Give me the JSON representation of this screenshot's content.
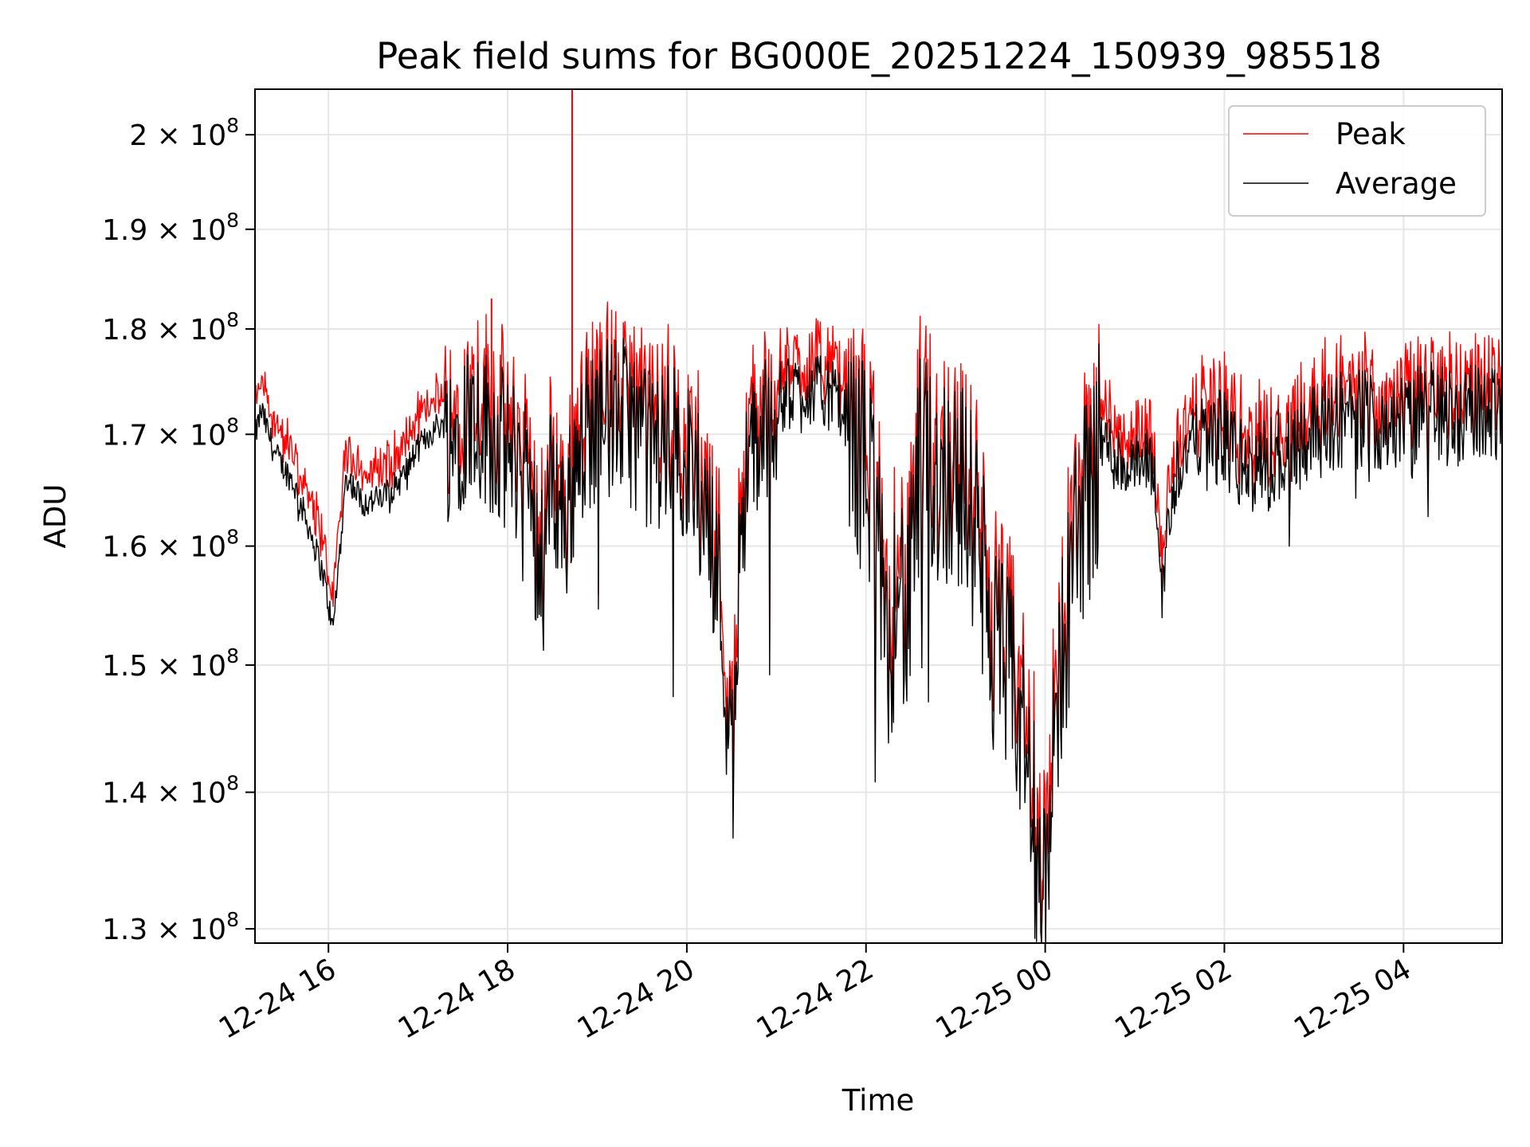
{
  "chart_data": {
    "type": "line",
    "title": "Peak field sums for BG000E_20251224_150939_985518",
    "xlabel": "Time",
    "ylabel": "ADU",
    "yscale": "log",
    "ylim": [
      129000000,
      205000000
    ],
    "xlim_hours": [
      15.18,
      29.1
    ],
    "grid": true,
    "legend_position": "top-right",
    "y_ticks": [
      {
        "value": 130000000,
        "mantissa": "1.3",
        "exponent": "8"
      },
      {
        "value": 140000000,
        "mantissa": "1.4",
        "exponent": "8"
      },
      {
        "value": 150000000,
        "mantissa": "1.5",
        "exponent": "8"
      },
      {
        "value": 160000000,
        "mantissa": "1.6",
        "exponent": "8"
      },
      {
        "value": 170000000,
        "mantissa": "1.7",
        "exponent": "8"
      },
      {
        "value": 180000000,
        "mantissa": "1.8",
        "exponent": "8"
      },
      {
        "value": 190000000,
        "mantissa": "1.9",
        "exponent": "8"
      },
      {
        "value": 200000000,
        "mantissa": "2",
        "exponent": "8"
      }
    ],
    "x_ticks": [
      {
        "hours": 16,
        "label": "12-24 16"
      },
      {
        "hours": 18,
        "label": "12-24 18"
      },
      {
        "hours": 20,
        "label": "12-24 20"
      },
      {
        "hours": 22,
        "label": "12-24 22"
      },
      {
        "hours": 24,
        "label": "12-25 00"
      },
      {
        "hours": 26,
        "label": "12-25 02"
      },
      {
        "hours": 28,
        "label": "12-25 04"
      }
    ],
    "series": [
      {
        "name": "Peak",
        "color": "#ff0000",
        "offset_from_average": 1200000,
        "spikes": [
          {
            "hours": 17.82,
            "value": 183000000
          },
          {
            "hours": 18.72,
            "value": 205000000
          }
        ]
      },
      {
        "name": "Average",
        "color": "#000000",
        "x_hours": [
          15.18,
          15.25,
          15.4,
          15.6,
          15.8,
          15.95,
          16.05,
          16.2,
          16.4,
          16.6,
          16.8,
          17.0,
          17.2,
          17.4,
          17.6,
          17.8,
          18.0,
          18.2,
          18.35,
          18.5,
          18.65,
          18.8,
          19.0,
          19.2,
          19.4,
          19.6,
          19.8,
          20.0,
          20.2,
          20.35,
          20.45,
          20.52,
          20.6,
          20.75,
          21.0,
          21.3,
          21.6,
          21.9,
          22.1,
          22.25,
          22.35,
          22.45,
          22.6,
          22.8,
          23.0,
          23.2,
          23.4,
          23.6,
          23.8,
          23.92,
          24.0,
          24.15,
          24.35,
          24.6,
          24.85,
          25.0,
          25.2,
          25.3,
          25.45,
          25.6,
          25.8,
          26.0,
          26.3,
          26.6,
          27.0,
          27.3,
          27.6,
          28.0,
          28.3,
          28.6,
          29.1
        ],
        "values": [
          170000000,
          172500000,
          168500000,
          166000000,
          161500000,
          157500000,
          153000000,
          166500000,
          164000000,
          164500000,
          166000000,
          169000000,
          171000000,
          171500000,
          173500000,
          172000000,
          169500000,
          169000000,
          160000000,
          167500000,
          163000000,
          171500000,
          172500000,
          173500000,
          172500000,
          170000000,
          171000000,
          169000000,
          165000000,
          159000000,
          148000000,
          142500000,
          165000000,
          170000000,
          174000000,
          175000000,
          174500000,
          170500000,
          167500000,
          148000000,
          163000000,
          153500000,
          169500000,
          168000000,
          168500000,
          164500000,
          154000000,
          150500000,
          144500000,
          137000000,
          132000000,
          150500000,
          163000000,
          170500000,
          168000000,
          167500000,
          168000000,
          157000000,
          167000000,
          169500000,
          171000000,
          170500000,
          167000000,
          169000000,
          171500000,
          172500000,
          172500000,
          172000000,
          173500000,
          172500000,
          173500000
        ]
      }
    ]
  }
}
